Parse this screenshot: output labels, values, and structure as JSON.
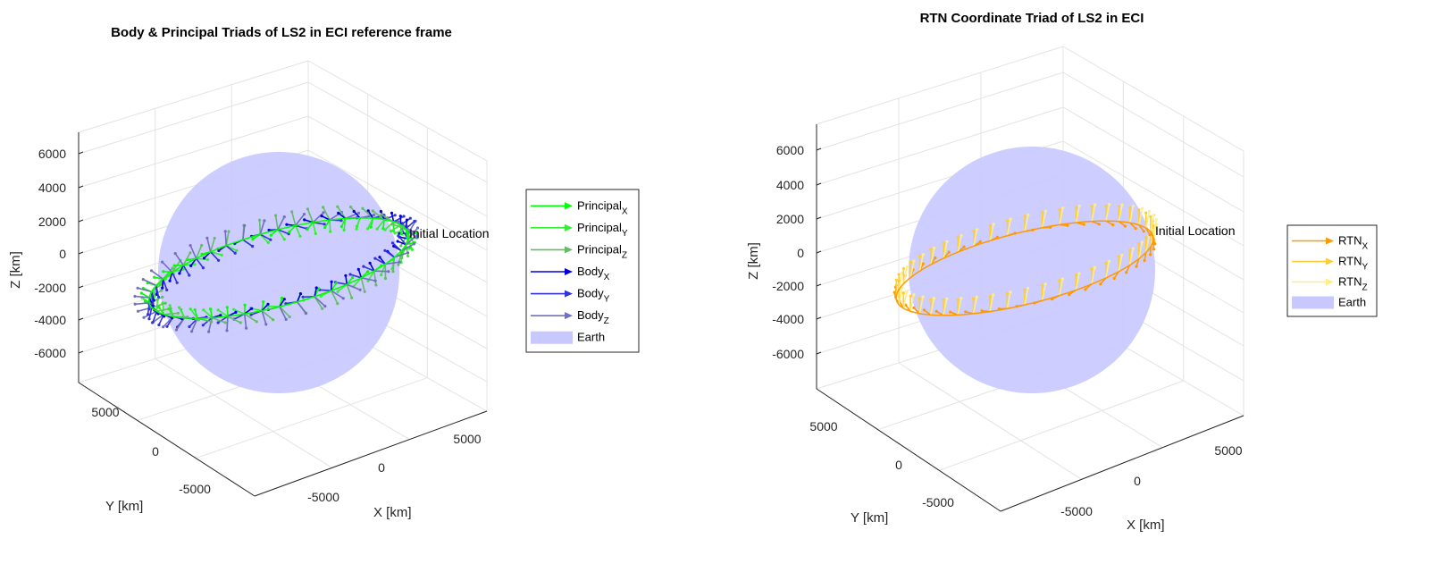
{
  "chart_data": [
    {
      "type": "scatter",
      "title": "Body & Principal Triads of LS2 in ECI reference frame",
      "xlabel": "X [km]",
      "ylabel": "Y [km]",
      "zlabel": "Z [km]",
      "x_ticks": [
        "-5000",
        "0",
        "5000"
      ],
      "y_ticks": [
        "-5000",
        "0",
        "5000"
      ],
      "z_ticks": [
        "6000",
        "4000",
        "2000",
        "0",
        "-2000",
        "-4000",
        "-6000"
      ],
      "zlim": [
        -7500,
        7500
      ],
      "grid": true,
      "legend_position": "right",
      "annotation": "Initial Location",
      "legend": [
        {
          "label": "Principal",
          "sub": "X",
          "color": "#00ff00",
          "kind": "arrow"
        },
        {
          "label": "Principal",
          "sub": "Y",
          "color": "#33ee33",
          "kind": "arrow"
        },
        {
          "label": "Principal",
          "sub": "Z",
          "color": "#66bb66",
          "kind": "arrow"
        },
        {
          "label": "Body",
          "sub": "X",
          "color": "#0000dd",
          "kind": "arrow"
        },
        {
          "label": "Body",
          "sub": "Y",
          "color": "#3333dd",
          "kind": "arrow"
        },
        {
          "label": "Body",
          "sub": "Z",
          "color": "#7070c0",
          "kind": "arrow"
        },
        {
          "label": "Earth",
          "sub": "",
          "color": "#c8c8ff",
          "kind": "patch"
        }
      ],
      "earth_radius_km": 6378
    },
    {
      "type": "scatter",
      "title": "RTN Coordinate Triad of LS2 in ECI",
      "xlabel": "X [km]",
      "ylabel": "Y [km]",
      "zlabel": "Z [km]",
      "x_ticks": [
        "-5000",
        "0",
        "5000"
      ],
      "y_ticks": [
        "-5000",
        "0",
        "5000"
      ],
      "z_ticks": [
        "6000",
        "4000",
        "2000",
        "0",
        "-2000",
        "-4000",
        "-6000"
      ],
      "zlim": [
        -7500,
        7500
      ],
      "grid": true,
      "legend_position": "right",
      "annotation": "Initial Location",
      "legend": [
        {
          "label": "RTN",
          "sub": "X",
          "color": "#ff9900",
          "kind": "arrow"
        },
        {
          "label": "RTN",
          "sub": "Y",
          "color": "#ffcc33",
          "kind": "arrow"
        },
        {
          "label": "RTN",
          "sub": "Z",
          "color": "#ffee88",
          "kind": "arrow"
        },
        {
          "label": "Earth",
          "sub": "",
          "color": "#c8c8ff",
          "kind": "patch"
        }
      ],
      "earth_radius_km": 6378
    }
  ]
}
